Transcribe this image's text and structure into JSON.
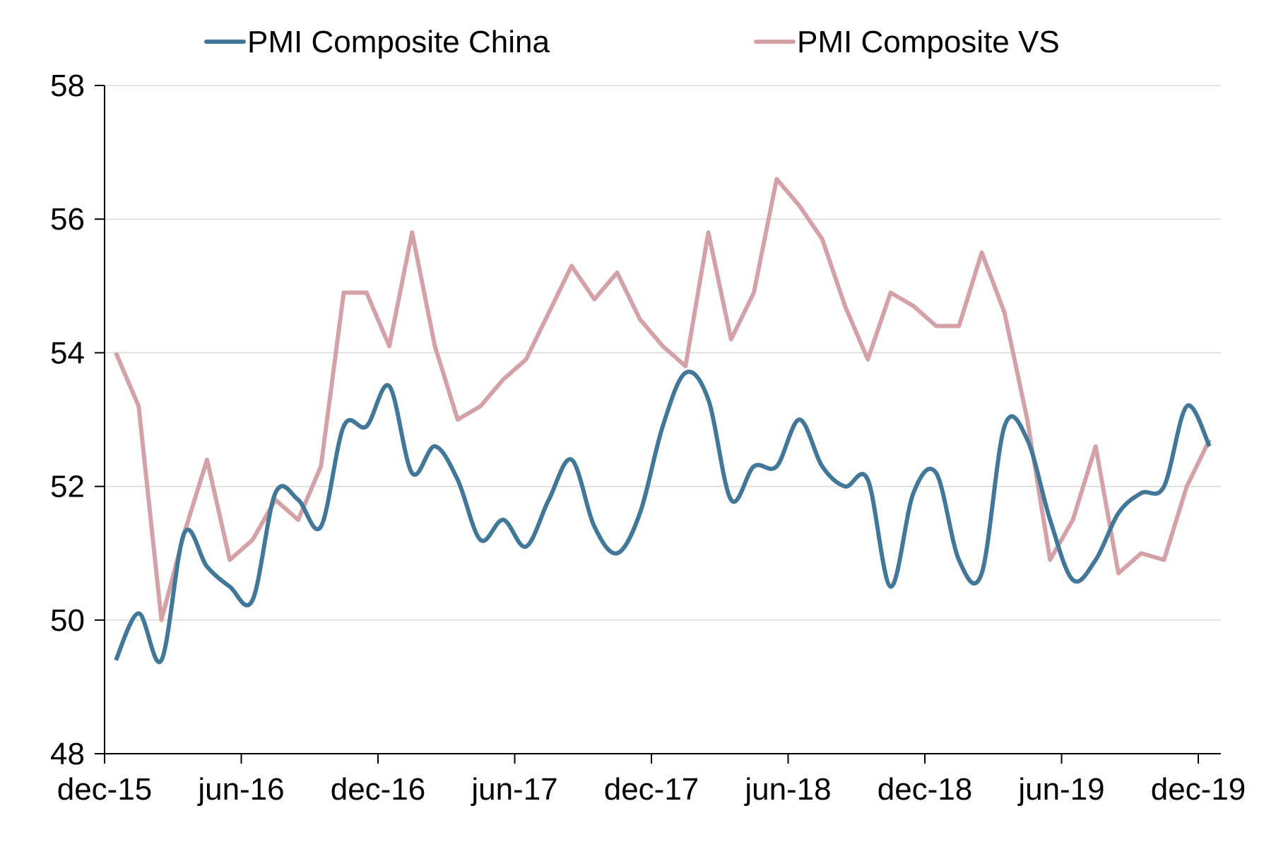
{
  "chart_data": {
    "type": "line",
    "title": "",
    "xlabel": "",
    "ylabel": "",
    "ylim": [
      48,
      58
    ],
    "yticks": [
      48,
      50,
      52,
      54,
      56,
      58
    ],
    "x": [
      "dec-15",
      "jan-16",
      "feb-16",
      "mar-16",
      "apr-16",
      "may-16",
      "jun-16",
      "jul-16",
      "aug-16",
      "sep-16",
      "oct-16",
      "nov-16",
      "dec-16",
      "jan-17",
      "feb-17",
      "mar-17",
      "apr-17",
      "may-17",
      "jun-17",
      "jul-17",
      "aug-17",
      "sep-17",
      "oct-17",
      "nov-17",
      "dec-17",
      "jan-18",
      "feb-18",
      "mar-18",
      "apr-18",
      "may-18",
      "jun-18",
      "jul-18",
      "aug-18",
      "sep-18",
      "oct-18",
      "nov-18",
      "dec-18",
      "jan-19",
      "feb-19",
      "mar-19",
      "apr-19",
      "may-19",
      "jun-19",
      "jul-19",
      "aug-19",
      "sep-19",
      "oct-19",
      "nov-19",
      "dec-19"
    ],
    "xticks": [
      "dec-15",
      "jun-16",
      "dec-16",
      "jun-17",
      "dec-17",
      "jun-18",
      "dec-18",
      "jun-19",
      "dec-19"
    ],
    "grid": true,
    "legend_position": "top",
    "series": [
      {
        "name": "PMI Composite China",
        "color": "#41789a",
        "values": [
          49.4,
          50.1,
          49.4,
          51.3,
          50.8,
          50.5,
          50.3,
          51.9,
          51.8,
          51.4,
          52.9,
          52.9,
          53.5,
          52.2,
          52.6,
          52.1,
          51.2,
          51.5,
          51.1,
          51.8,
          52.4,
          51.4,
          51.0,
          51.6,
          52.9,
          53.7,
          53.3,
          51.8,
          52.3,
          52.3,
          53.0,
          52.3,
          52.0,
          52.1,
          50.5,
          51.9,
          52.2,
          50.9,
          50.7,
          52.9,
          52.7,
          51.5,
          50.6,
          50.9,
          51.6,
          51.9,
          52.0,
          53.2,
          52.6
        ]
      },
      {
        "name": "PMI Composite VS",
        "color": "#d4a1a6",
        "values": [
          54.0,
          53.2,
          50.0,
          51.3,
          52.4,
          50.9,
          51.2,
          51.8,
          51.5,
          52.3,
          54.9,
          54.9,
          54.1,
          55.8,
          54.1,
          53.0,
          53.2,
          53.6,
          53.9,
          54.6,
          55.3,
          54.8,
          55.2,
          54.5,
          54.1,
          53.8,
          55.8,
          54.2,
          54.9,
          56.6,
          56.2,
          55.7,
          54.7,
          53.9,
          54.9,
          54.7,
          54.4,
          54.4,
          55.5,
          54.6,
          53.0,
          50.9,
          51.5,
          52.6,
          50.7,
          51.0,
          50.9,
          52.0,
          52.7
        ]
      }
    ]
  }
}
